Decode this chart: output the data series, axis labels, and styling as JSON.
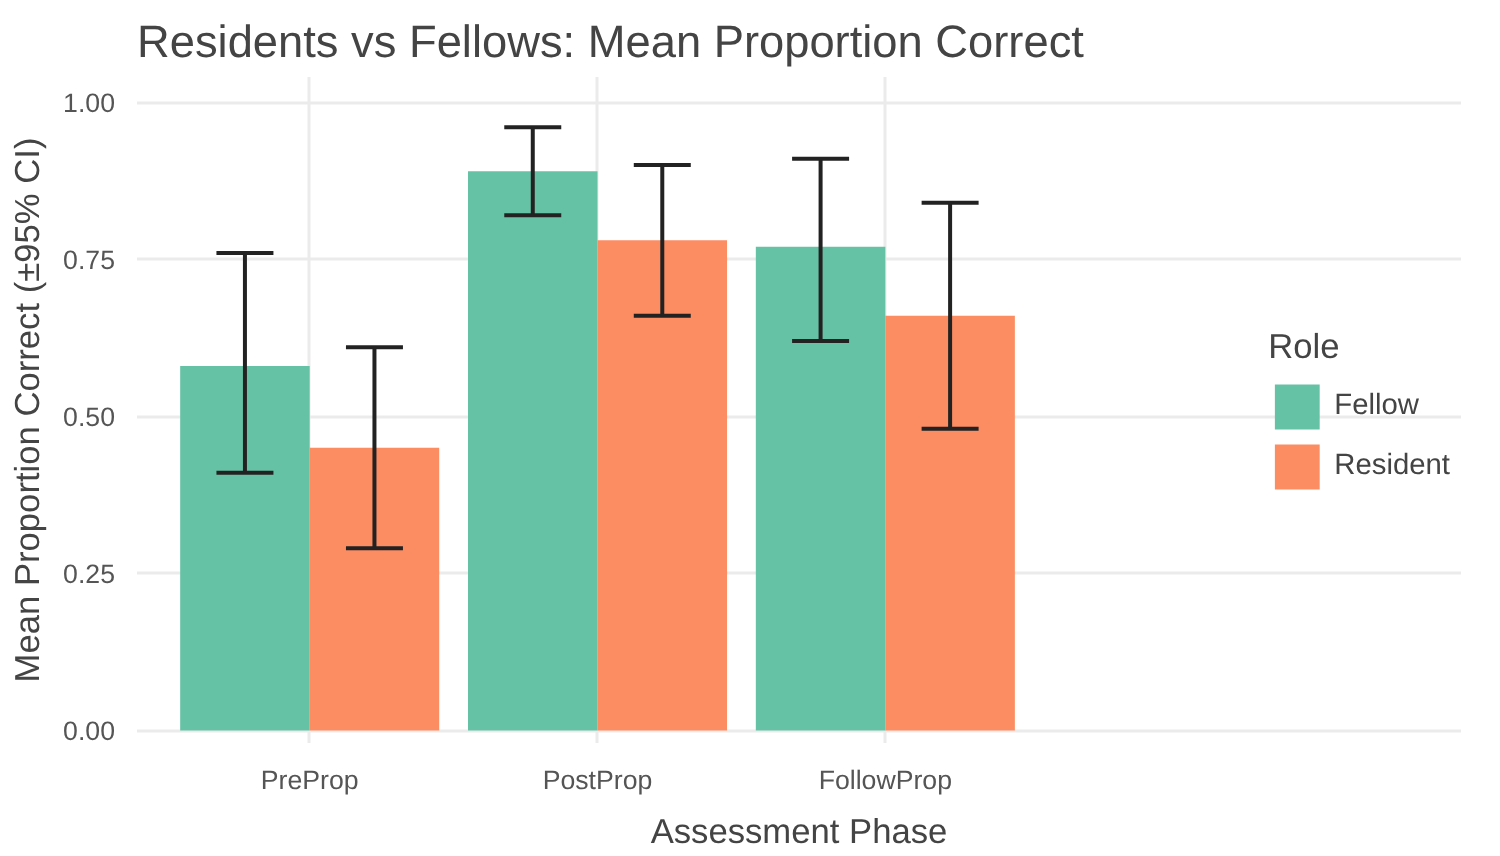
{
  "chart_data": {
    "type": "bar",
    "title": "Residents vs Fellows: Mean Proportion Correct",
    "xlabel": "Assessment Phase",
    "ylabel": "Mean Proportion Correct (±95% CI)",
    "legend_title": "Role",
    "categories": [
      "PreProp",
      "PostProp",
      "FollowProp"
    ],
    "series": [
      {
        "name": "Fellow",
        "color": "#66c2a5",
        "values": [
          0.58,
          0.89,
          0.77
        ],
        "errors": [
          [
            0.41,
            0.76
          ],
          [
            0.82,
            0.96
          ],
          [
            0.62,
            0.91
          ]
        ]
      },
      {
        "name": "Resident",
        "color": "#fc8d62",
        "values": [
          0.45,
          0.78,
          0.66
        ],
        "errors": [
          [
            0.29,
            0.61
          ],
          [
            0.66,
            0.9
          ],
          [
            0.48,
            0.84
          ]
        ]
      }
    ],
    "ylim": [
      -0.02,
      1.04
    ],
    "yticks": [
      {
        "value": 0,
        "label": "0.00"
      },
      {
        "value": 0.25,
        "label": "0.25"
      },
      {
        "value": 0.5,
        "label": "0.50"
      },
      {
        "value": 0.75,
        "label": "0.75"
      },
      {
        "value": 1,
        "label": "1.00"
      }
    ],
    "grid": true,
    "legend": "right"
  }
}
